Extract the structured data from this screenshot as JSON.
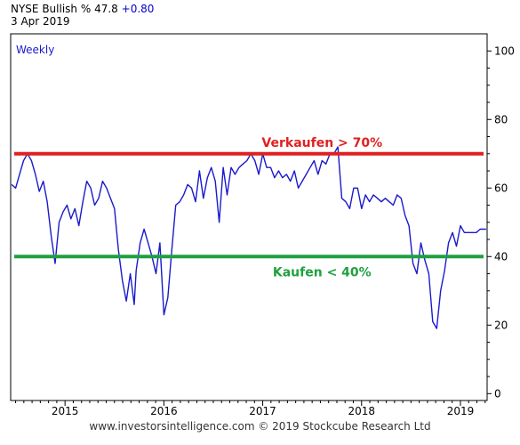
{
  "header": {
    "symbol": "NYSE Bullish",
    "pct": "%",
    "value": "47.8",
    "change": "+0.80",
    "date": "3 Apr 2019"
  },
  "footer": {
    "credit": "www.investorsintelligence.com  © 2019 Stockcube Research Ltd"
  },
  "chart_data": {
    "type": "line",
    "frequency_label": "Weekly",
    "ylim": [
      -2,
      105
    ],
    "xlim": [
      2014.45,
      2019.27
    ],
    "y_ticks": [
      0,
      20,
      40,
      60,
      80,
      100
    ],
    "x_ticks": [
      {
        "label": "2015",
        "x": 2015.0
      },
      {
        "label": "2016",
        "x": 2016.0
      },
      {
        "label": "2017",
        "x": 2017.0
      },
      {
        "label": "2018",
        "x": 2018.0
      },
      {
        "label": "2019",
        "x": 2019.0
      }
    ],
    "grid": false,
    "line_color": "#1a1acc",
    "series": [
      {
        "x": [
          2014.46,
          2014.5,
          2014.54,
          2014.58,
          2014.62,
          2014.66,
          2014.7,
          2014.74,
          2014.78,
          2014.82,
          2014.86,
          2014.9,
          2014.94,
          2014.98,
          2015.02,
          2015.06,
          2015.1,
          2015.14,
          2015.18,
          2015.22,
          2015.26,
          2015.3,
          2015.34,
          2015.38,
          2015.42,
          2015.46,
          2015.5,
          2015.54,
          2015.58,
          2015.62,
          2015.66,
          2015.7,
          2015.72,
          2015.76,
          2015.8,
          2015.84,
          2015.88,
          2015.92,
          2015.96,
          2016.0,
          2016.04,
          2016.08,
          2016.12,
          2016.16,
          2016.2,
          2016.24,
          2016.28,
          2016.32,
          2016.36,
          2016.4,
          2016.44,
          2016.48,
          2016.52,
          2016.56,
          2016.6,
          2016.64,
          2016.68,
          2016.72,
          2016.76,
          2016.8,
          2016.84,
          2016.88,
          2016.92,
          2016.96,
          2017.0,
          2017.04,
          2017.08,
          2017.12,
          2017.16,
          2017.2,
          2017.24,
          2017.28,
          2017.32,
          2017.36,
          2017.4,
          2017.44,
          2017.48,
          2017.52,
          2017.56,
          2017.6,
          2017.64,
          2017.68,
          2017.72,
          2017.76,
          2017.8,
          2017.84,
          2017.88,
          2017.92,
          2017.96,
          2018.0,
          2018.04,
          2018.08,
          2018.12,
          2018.16,
          2018.2,
          2018.24,
          2018.28,
          2018.32,
          2018.36,
          2018.4,
          2018.44,
          2018.48,
          2018.52,
          2018.56,
          2018.6,
          2018.64,
          2018.68,
          2018.72,
          2018.76,
          2018.8,
          2018.84,
          2018.88,
          2018.92,
          2018.96,
          2019.0,
          2019.04,
          2019.08,
          2019.12,
          2019.16,
          2019.2,
          2019.24,
          2019.26
        ],
        "values": [
          61,
          60,
          64,
          68,
          70,
          68,
          64,
          59,
          62,
          56,
          46,
          38,
          50,
          53,
          55,
          51,
          54,
          49,
          56,
          62,
          60,
          55,
          57,
          62,
          60,
          57,
          54,
          42,
          33,
          27,
          35,
          26,
          36,
          44,
          48,
          44,
          40,
          35,
          44,
          23,
          28,
          42,
          55,
          56,
          58,
          61,
          60,
          56,
          65,
          57,
          63,
          66,
          62,
          50,
          66,
          58,
          66,
          64,
          66,
          67,
          68,
          70,
          68,
          64,
          70,
          66,
          66,
          63,
          65,
          63,
          64,
          62,
          65,
          60,
          62,
          64,
          66,
          68,
          64,
          68,
          67,
          70,
          70,
          72,
          57,
          56,
          54,
          60,
          60,
          54,
          58,
          56,
          58,
          57,
          56,
          57,
          56,
          55,
          58,
          57,
          52,
          49,
          38,
          35,
          44,
          39,
          35,
          21,
          19,
          30,
          36,
          44,
          47,
          43,
          49,
          47,
          47,
          47,
          47,
          48,
          48,
          48
        ],
        "_note": "weekly line"
      }
    ],
    "reference_lines": [
      {
        "y": 70,
        "label": "Verkaufen > 70%",
        "color": "#e02020"
      },
      {
        "y": 40,
        "label": "Kaufen < 40%",
        "color": "#1fa040"
      }
    ]
  }
}
